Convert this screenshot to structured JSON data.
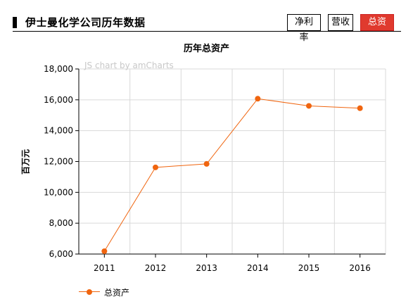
{
  "header": {
    "title": "伊士曼化学公司历年数据",
    "tabs": [
      {
        "label": "净利率",
        "active": false
      },
      {
        "label": "营收",
        "active": false
      },
      {
        "label": "总资产",
        "active": true
      }
    ]
  },
  "watermark": "JS chart by amCharts",
  "colors": {
    "series": "#f0650f",
    "active_tab": "#e03a2e",
    "grid": "#d9d9d9"
  },
  "chart_data": {
    "type": "line",
    "title": "历年总资产",
    "xlabel": "",
    "ylabel": "百万元",
    "categories": [
      "2011",
      "2012",
      "2013",
      "2014",
      "2015",
      "2016"
    ],
    "series": [
      {
        "name": "总资产",
        "values": [
          6184,
          11619,
          11845,
          16072,
          15607,
          15457
        ]
      }
    ],
    "ylim": [
      6000,
      18000
    ],
    "yticks": [
      "6,000",
      "8,000",
      "10,000",
      "12,000",
      "14,000",
      "16,000",
      "18,000"
    ],
    "grid": true,
    "legend_position": "bottom-left"
  }
}
